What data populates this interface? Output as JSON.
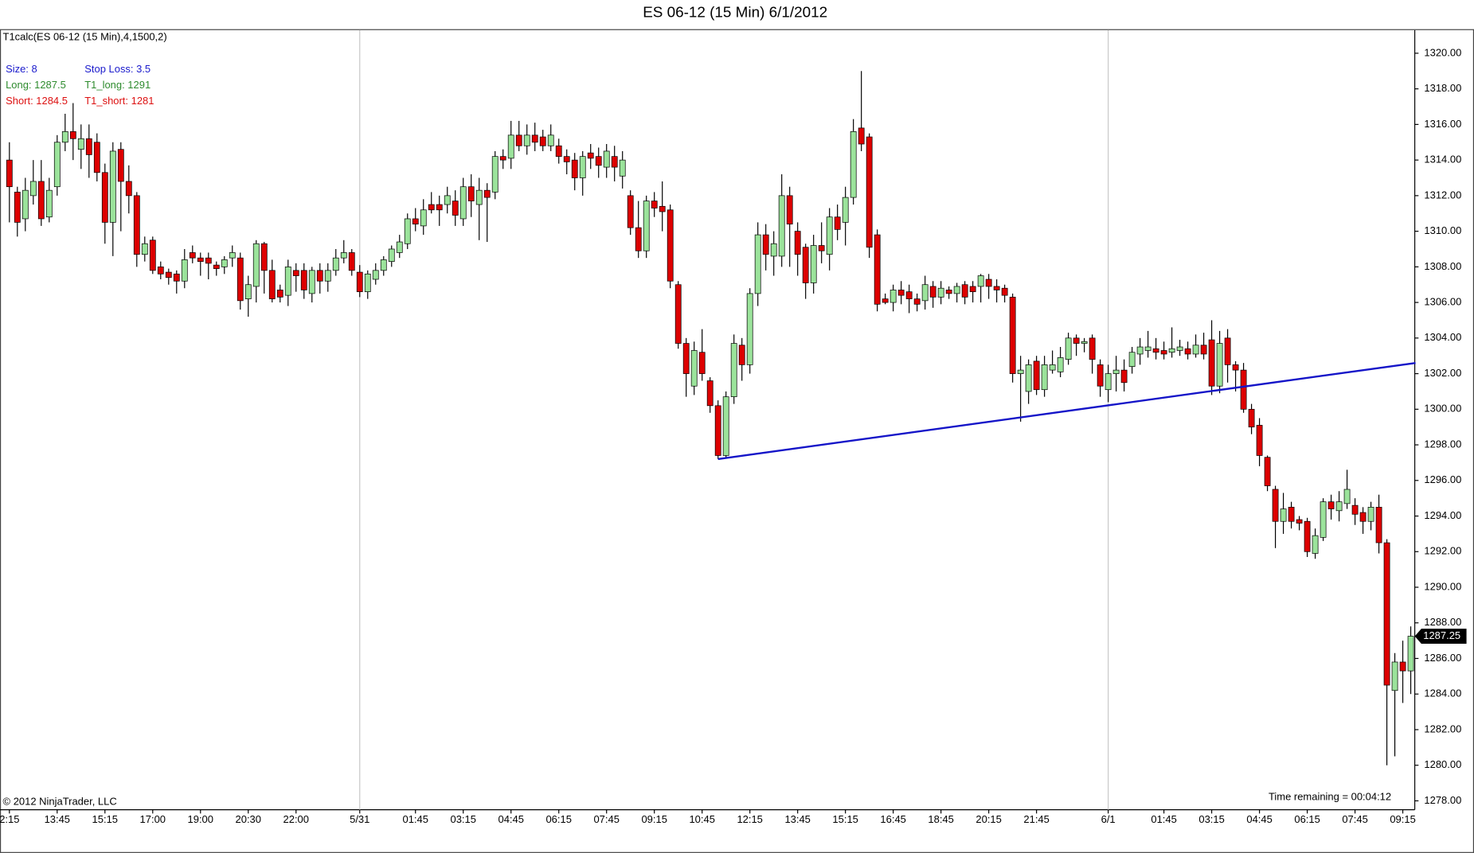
{
  "chart_data": {
    "type": "candlestick",
    "title": "ES 06-12 (15 Min)  6/1/2012",
    "indicator": "T1calc(ES 06-12 (15 Min),4,1500,2)",
    "info": [
      {
        "text": "Size: 8",
        "color": "#1a1acc"
      },
      {
        "text": "Stop Loss: 3.5",
        "color": "#1a1acc"
      },
      {
        "text": "Long: 1287.5",
        "color": "#2e8b2e"
      },
      {
        "text": "T1_long: 1291",
        "color": "#2e8b2e"
      },
      {
        "text": "Short: 1284.5",
        "color": "#dd1111"
      },
      {
        "text": "T1_short: 1281",
        "color": "#dd1111"
      }
    ],
    "copyright": "© 2012 NinjaTrader, LLC",
    "time_remaining": "Time remaining = 00:04:12",
    "last_price": 1287.25,
    "up_color": "#9be39b",
    "down_color": "#dd0000",
    "categories": [
      "2:15",
      null,
      null,
      null,
      null,
      null,
      "13:45",
      null,
      null,
      null,
      null,
      null,
      "15:15",
      null,
      null,
      null,
      null,
      null,
      "17:00",
      null,
      null,
      null,
      null,
      null,
      "19:00",
      null,
      null,
      null,
      null,
      null,
      "20:30",
      null,
      null,
      null,
      null,
      null,
      "22:00",
      null,
      null,
      null,
      null,
      null,
      null,
      null,
      "5/31",
      null,
      null,
      null,
      null,
      null,
      null,
      "01:45",
      null,
      null,
      null,
      null,
      null,
      "03:15",
      null,
      null,
      null,
      null,
      null,
      "04:45",
      null,
      null,
      null,
      null,
      null,
      "06:15",
      null,
      null,
      null,
      null,
      null,
      "07:45",
      null,
      null,
      null,
      null,
      null,
      "09:15",
      null,
      null,
      null,
      null,
      null,
      "10:45",
      null,
      null,
      null,
      null,
      null,
      "12:15",
      null,
      null,
      null,
      null,
      null,
      "13:45",
      null,
      null,
      null,
      null,
      null,
      "15:15",
      null,
      null,
      null,
      null,
      null,
      "16:45",
      null,
      null,
      null,
      null,
      null,
      "18:45",
      null,
      null,
      null,
      null,
      null,
      "20:15",
      null,
      null,
      null,
      null,
      null,
      "21:45",
      null,
      null,
      null,
      null,
      null,
      null,
      null,
      null,
      "6/1",
      null,
      null,
      null,
      null,
      null,
      null,
      "01:45",
      null,
      null,
      null,
      null,
      null,
      "03:15",
      null,
      null,
      null,
      null,
      null,
      "04:45",
      null,
      null,
      null,
      null,
      null,
      "06:15",
      null,
      null,
      null,
      null,
      null,
      "07:45",
      null,
      null,
      null,
      null,
      null,
      "09:15",
      null
    ],
    "open": [
      1314,
      1312.2,
      1310.7,
      1312,
      1312.8,
      1310.8,
      1312.5,
      1315,
      1315.6,
      1314.6,
      1315.2,
      1315,
      1313.3,
      1310.5,
      1314.6,
      1312.8,
      1312,
      1308.7,
      1309.5,
      1308,
      1307.7,
      1307.6,
      1307.2,
      1308.8,
      1308.5,
      1308.5,
      1308.1,
      1308,
      1308.5,
      1308.5,
      1306.2,
      1306.9,
      1309.3,
      1307.8,
      1306.7,
      1306.4,
      1307.8,
      1307.8,
      1306.5,
      1307.8,
      1307.2,
      1307.8,
      1308.5,
      1308.8,
      1307.7,
      1306.6,
      1307.3,
      1307.8,
      1308.3,
      1308.8,
      1309.3,
      1310.7,
      1310.3,
      1311.5,
      1311.5,
      1311.5,
      1311.7,
      1310.7,
      1312.5,
      1311.5,
      1312.3,
      1312.2,
      1314.2,
      1314.1,
      1315.4,
      1314.8,
      1315.4,
      1315.3,
      1314.8,
      1314.8,
      1314.2,
      1314,
      1313,
      1314.4,
      1314.2,
      1313.6,
      1314.2,
      1313.1,
      1312,
      1310.2,
      1308.9,
      1311.7,
      1311.4,
      1311.2,
      1307,
      1303.7,
      1301.3,
      1303.2,
      1301.6,
      1300.2,
      1297.4,
      1300.7,
      1303.6,
      1302.5,
      1306.5,
      1309.8,
      1308.6,
      1308.6,
      1312,
      1310,
      1309.1,
      1307.1,
      1309.2,
      1308.7,
      1310.8,
      1310.5,
      1311.9,
      1315.8,
      1315.3,
      1309.8,
      1306.2,
      1306,
      1306.7,
      1306.6,
      1306.2,
      1306.1,
      1306.9,
      1306.3,
      1306.7,
      1306.5,
      1307,
      1306.9,
      1306.9,
      1307.3,
      1306.9,
      1306.8,
      1306.3,
      1302,
      1301,
      1302.7,
      1301.1,
      1302.2,
      1302.1,
      1302.8,
      1304,
      1303.7,
      1304,
      1302.5,
      1301.1,
      1302,
      1302.2,
      1302.4,
      1303.1,
      1303.3,
      1303.4,
      1303.3,
      1303.2,
      1303.3,
      1303.4,
      1303.1,
      1303.6,
      1303.9,
      1301.3,
      1304,
      1302.5,
      1302.2,
      1300,
      1299.1,
      1297.3,
      1295.5,
      1293.7,
      1294.5,
      1293.8,
      1293.7,
      1291.9,
      1292.8,
      1294.8,
      1294.3,
      1294.7,
      1294.6,
      1294.2,
      1293.7,
      1294.5,
      1292.5,
      1284.2,
      1285.8,
      1285.3
    ],
    "high": [
      1315,
      1312.5,
      1313,
      1314,
      1314,
      1313,
      1315.4,
      1316.6,
      1317.2,
      1316,
      1316,
      1315.5,
      1313.8,
      1315,
      1315,
      1313.7,
      1312.2,
      1309.7,
      1309.7,
      1308.3,
      1307.9,
      1307.8,
      1309,
      1309.2,
      1308.8,
      1308.8,
      1308.3,
      1308.6,
      1309.2,
      1308.8,
      1307.5,
      1309.5,
      1309.4,
      1308.4,
      1307,
      1308.4,
      1308.2,
      1308.2,
      1308,
      1308.2,
      1308.2,
      1309,
      1309.5,
      1309,
      1308.1,
      1307.8,
      1308.2,
      1308.6,
      1309.2,
      1309.8,
      1311,
      1311.3,
      1311.8,
      1312.2,
      1312,
      1312.5,
      1312.3,
      1313,
      1313.2,
      1313,
      1312.7,
      1314.5,
      1314.6,
      1316.2,
      1316.2,
      1316,
      1316.1,
      1315.7,
      1316,
      1315.2,
      1314.6,
      1314.4,
      1314.5,
      1314.9,
      1314.7,
      1314.9,
      1314.8,
      1314.5,
      1312.3,
      1311.7,
      1312,
      1312.2,
      1312.8,
      1311.5,
      1307.2,
      1304,
      1303.8,
      1304.5,
      1301.8,
      1300.5,
      1301,
      1304.2,
      1304,
      1306.8,
      1310.5,
      1310.4,
      1310,
      1313.2,
      1312.5,
      1310.5,
      1309.3,
      1309.8,
      1310.5,
      1311.3,
      1311.5,
      1312.5,
      1316.3,
      1319,
      1315.5,
      1310.1,
      1306.5,
      1307,
      1307.2,
      1307,
      1306.5,
      1307.5,
      1307.2,
      1307.2,
      1306.9,
      1307.1,
      1307.2,
      1307.2,
      1307.6,
      1307.6,
      1307.3,
      1307,
      1306.5,
      1303,
      1302.8,
      1303,
      1303,
      1303.3,
      1303.5,
      1304.3,
      1304.2,
      1304,
      1304.2,
      1302.8,
      1302.5,
      1303,
      1302.8,
      1303.5,
      1304,
      1304.4,
      1304,
      1303.8,
      1304.6,
      1303.9,
      1303.8,
      1304.2,
      1304.3,
      1305,
      1304.4,
      1304.5,
      1302.7,
      1302.6,
      1300.3,
      1299.5,
      1297.4,
      1295.7,
      1295.3,
      1294.8,
      1294,
      1293.9,
      1293.3,
      1295,
      1295.2,
      1295.4,
      1296.6,
      1295,
      1294.5,
      1294.8,
      1295.2,
      1292.7,
      1286.3,
      1287,
      1287.8
    ],
    "low": [
      1310.5,
      1309.7,
      1310,
      1311.5,
      1310.3,
      1310.5,
      1312,
      1314.5,
      1314,
      1313.5,
      1313,
      1312.8,
      1309.3,
      1308.6,
      1310,
      1311,
      1308,
      1308.3,
      1307.6,
      1307.3,
      1307,
      1306.5,
      1306.8,
      1308.2,
      1307.5,
      1307.3,
      1307.5,
      1307.6,
      1308,
      1305.6,
      1305.2,
      1306,
      1306.5,
      1306,
      1306,
      1305.8,
      1306.6,
      1306.2,
      1306,
      1306.5,
      1306.6,
      1307.5,
      1308.2,
      1307.5,
      1306.3,
      1306.2,
      1307,
      1307.5,
      1308,
      1308.5,
      1309,
      1310,
      1309.8,
      1311,
      1310.3,
      1311,
      1310.3,
      1310.3,
      1310.8,
      1309.5,
      1309.4,
      1311.8,
      1313.5,
      1313.5,
      1314.5,
      1314.3,
      1314.5,
      1314.5,
      1314.5,
      1313.8,
      1313.2,
      1312.3,
      1312,
      1313.5,
      1313,
      1313,
      1312.8,
      1312.4,
      1309.8,
      1308.5,
      1308.5,
      1310.8,
      1310,
      1306.8,
      1303.4,
      1300.7,
      1300.8,
      1301.6,
      1299.8,
      1297.2,
      1297.3,
      1300.3,
      1301.6,
      1302,
      1305.8,
      1307.8,
      1307.5,
      1308,
      1308,
      1307.5,
      1306.2,
      1306.5,
      1308.2,
      1307.8,
      1309.5,
      1309.2,
      1311.5,
      1314.5,
      1308.5,
      1305.5,
      1305.9,
      1305.5,
      1305.9,
      1305.4,
      1305.5,
      1305.6,
      1305.7,
      1305.9,
      1306.2,
      1306,
      1305.9,
      1306,
      1306,
      1306.2,
      1306,
      1306,
      1301.5,
      1299.3,
      1300.3,
      1300.8,
      1300.7,
      1302,
      1301.8,
      1302.5,
      1303,
      1303.2,
      1302,
      1300.7,
      1300.4,
      1301,
      1301,
      1302,
      1302.5,
      1302.9,
      1302.8,
      1302.8,
      1302.9,
      1303,
      1302.8,
      1302.9,
      1302.8,
      1300.8,
      1300.9,
      1301.5,
      1301,
      1299.8,
      1298.6,
      1296.8,
      1295.4,
      1292.2,
      1293,
      1293.3,
      1293.2,
      1291.7,
      1291.6,
      1292.6,
      1293.8,
      1293.7,
      1294.4,
      1293.5,
      1293,
      1293.2,
      1291.9,
      1280,
      1280.5,
      1283.5,
      1284
    ],
    "close": [
      1312.5,
      1310.5,
      1312.3,
      1312.8,
      1310.7,
      1312.3,
      1315,
      1315.6,
      1315.2,
      1315.2,
      1314.3,
      1313.3,
      1310.5,
      1314.5,
      1312.8,
      1312,
      1308.7,
      1309.3,
      1307.8,
      1307.6,
      1307.4,
      1307.2,
      1308.4,
      1308.5,
      1308.3,
      1308.2,
      1307.9,
      1308.4,
      1308.8,
      1306.1,
      1307,
      1309.3,
      1307.8,
      1306.2,
      1306.3,
      1308,
      1307.5,
      1306.7,
      1307.8,
      1307.2,
      1307.8,
      1308.5,
      1308.8,
      1307.8,
      1306.6,
      1307.6,
      1307.8,
      1308.4,
      1309,
      1309.4,
      1310.7,
      1310.4,
      1311.2,
      1311.2,
      1311.2,
      1312,
      1310.9,
      1312.5,
      1311.7,
      1312.3,
      1311.9,
      1314.2,
      1314,
      1315.4,
      1314.8,
      1315.4,
      1315,
      1314.8,
      1315.4,
      1314.2,
      1313.9,
      1313,
      1314.2,
      1314.1,
      1313.7,
      1314.5,
      1313.6,
      1314,
      1310.2,
      1308.9,
      1311.7,
      1311.3,
      1311.1,
      1307.2,
      1303.7,
      1302,
      1303.3,
      1302,
      1300.2,
      1297.4,
      1300.7,
      1303.7,
      1302.5,
      1306.5,
      1309.8,
      1308.7,
      1309.3,
      1312,
      1310.4,
      1308.7,
      1307.1,
      1309.2,
      1308.9,
      1310.8,
      1310.1,
      1311.9,
      1315.6,
      1314.9,
      1309.1,
      1305.9,
      1306,
      1306.7,
      1306.4,
      1306.2,
      1305.9,
      1307,
      1306.3,
      1306.8,
      1306.5,
      1306.9,
      1306.3,
      1306.6,
      1307.5,
      1306.9,
      1306.7,
      1306.4,
      1302,
      1302.2,
      1302.5,
      1301.1,
      1302.5,
      1302.5,
      1302.9,
      1304,
      1303.7,
      1303.8,
      1302.8,
      1301.3,
      1302,
      1302.2,
      1301.5,
      1303.2,
      1303.5,
      1303.5,
      1303.2,
      1303.1,
      1303.4,
      1303.5,
      1303.1,
      1303.6,
      1303.1,
      1301.3,
      1303.7,
      1302.5,
      1302.2,
      1300,
      1299,
      1297.4,
      1295.7,
      1293.7,
      1294.4,
      1293.7,
      1293.6,
      1292,
      1292.9,
      1294.8,
      1294.4,
      1294.8,
      1295.5,
      1294.1,
      1293.7,
      1294.5,
      1292.5,
      1284.5,
      1285.8,
      1285.3,
      1287.25
    ],
    "trendline": {
      "x": [
        89,
        176.6
      ],
      "values": [
        1297.2,
        1302.6
      ],
      "color": "#1414c8"
    },
    "x_separators": [
      44,
      138
    ],
    "ylim": [
      1277.5,
      1321.3
    ],
    "yticks": [
      {
        "value": 1278,
        "label": "1278.00"
      },
      {
        "value": 1280,
        "label": "1280.00"
      },
      {
        "value": 1282,
        "label": "1282.00"
      },
      {
        "value": 1284,
        "label": "1284.00"
      },
      {
        "value": 1286,
        "label": "1286.00"
      },
      {
        "value": 1288,
        "label": "1288.00"
      },
      {
        "value": 1290,
        "label": "1290.00"
      },
      {
        "value": 1292,
        "label": "1292.00"
      },
      {
        "value": 1294,
        "label": "1294.00"
      },
      {
        "value": 1296,
        "label": "1296.00"
      },
      {
        "value": 1298,
        "label": "1298.00"
      },
      {
        "value": 1300,
        "label": "1300.00"
      },
      {
        "value": 1302,
        "label": "1302.00"
      },
      {
        "value": 1304,
        "label": "1304.00"
      },
      {
        "value": 1306,
        "label": "1306.00"
      },
      {
        "value": 1308,
        "label": "1308.00"
      },
      {
        "value": 1310,
        "label": "1310.00"
      },
      {
        "value": 1312,
        "label": "1312.00"
      },
      {
        "value": 1314,
        "label": "1314.00"
      },
      {
        "value": 1316,
        "label": "1316.00"
      },
      {
        "value": 1318,
        "label": "1318.00"
      },
      {
        "value": 1320,
        "label": "1320.00"
      }
    ]
  }
}
